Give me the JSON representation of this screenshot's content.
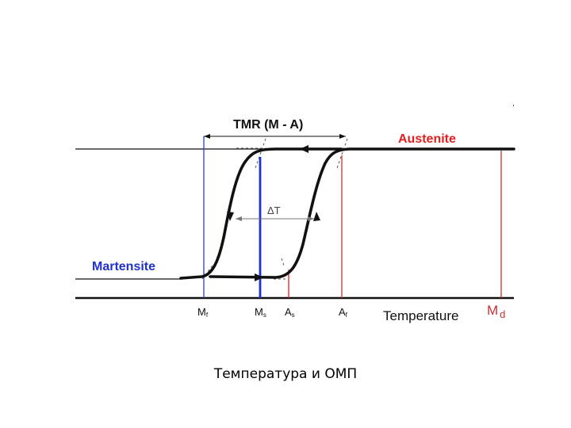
{
  "diagram": {
    "tmr_label": "TMR (M - A)",
    "austenite_label": "Austenite",
    "martensite_label": "Martensite",
    "delta_t_label": "ΔT",
    "temperature_label": "Temperature",
    "ticks": {
      "mf": {
        "main": "M",
        "sub": "f"
      },
      "ms": {
        "main": "M",
        "sub": "s"
      },
      "as": {
        "main": "A",
        "sub": "s"
      },
      "af": {
        "main": "A",
        "sub": "f"
      },
      "md": {
        "main": "M",
        "sub": "d"
      }
    },
    "colors": {
      "curve": "#111111",
      "ms_line": "#1f2fd0",
      "mf_line": "#2a3dc9",
      "red": "#e02020",
      "dark_red": "#c83030",
      "axis": "#111111",
      "dash": "#555555"
    }
  },
  "caption": "Температура и ОМП"
}
